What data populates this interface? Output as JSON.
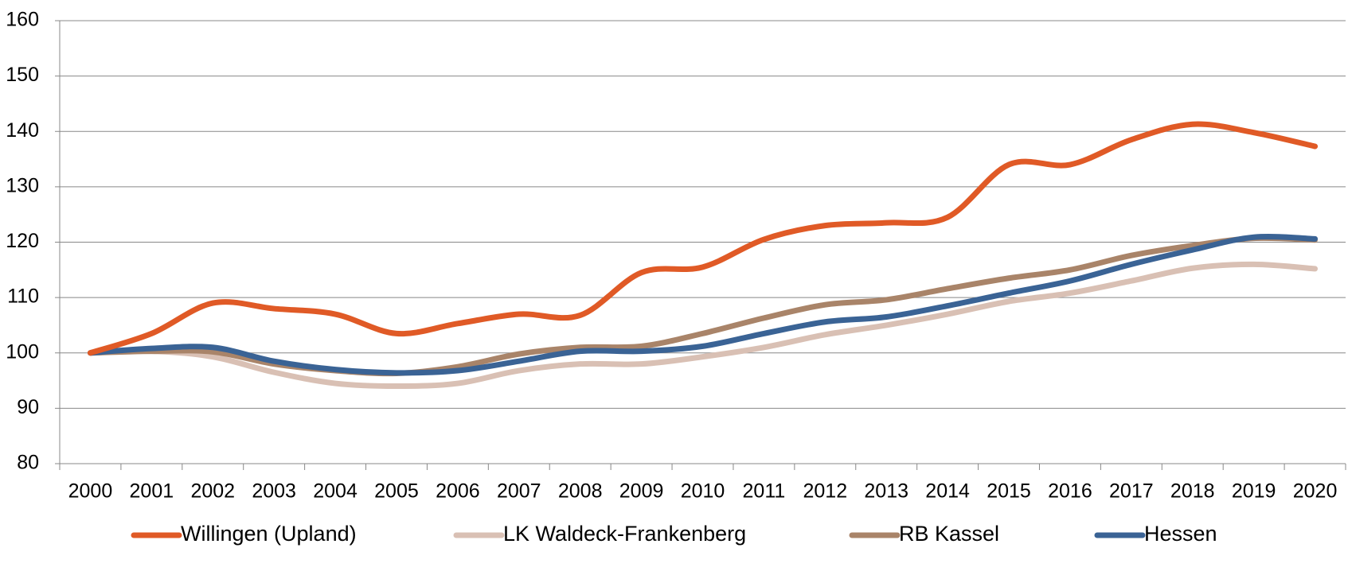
{
  "chart_data": {
    "type": "line",
    "categories": [
      "2000",
      "2001",
      "2002",
      "2003",
      "2004",
      "2005",
      "2006",
      "2007",
      "2008",
      "2009",
      "2010",
      "2011",
      "2012",
      "2013",
      "2014",
      "2015",
      "2016",
      "2017",
      "2018",
      "2019",
      "2020"
    ],
    "series": [
      {
        "name": "Willingen (Upland)",
        "color": "#e05a26",
        "values": [
          100,
          103.5,
          109,
          108,
          107,
          103.5,
          105.3,
          107,
          106.8,
          114.5,
          115.5,
          120.5,
          123,
          123.5,
          124.5,
          134,
          134,
          138.5,
          141.3,
          139.8,
          137.3
        ]
      },
      {
        "name": "LK Waldeck-Frankenberg",
        "color": "#d9c0b4",
        "values": [
          100,
          100.3,
          99.3,
          96.5,
          94.5,
          94,
          94.5,
          96.8,
          98,
          98,
          99.3,
          101,
          103.3,
          105,
          107,
          109.3,
          110.8,
          113,
          115.3,
          116,
          115.2
        ]
      },
      {
        "name": "RB Kassel",
        "color": "#a98469",
        "values": [
          100,
          100.3,
          100.2,
          98,
          96.8,
          96.3,
          97.5,
          99.8,
          101,
          101.2,
          103.5,
          106.3,
          108.7,
          109.6,
          111.6,
          113.5,
          115,
          117.6,
          119.4,
          120.7,
          120.4
        ]
      },
      {
        "name": "Hessen",
        "color": "#3a6395",
        "values": [
          100,
          100.8,
          101,
          98.5,
          97,
          96.4,
          96.8,
          98.5,
          100.3,
          100.3,
          101.2,
          103.5,
          105.6,
          106.5,
          108.5,
          110.8,
          113,
          116,
          118.6,
          120.9,
          120.6
        ]
      }
    ],
    "ylim": [
      80,
      160
    ],
    "yticks": [
      80,
      90,
      100,
      110,
      120,
      130,
      140,
      150,
      160
    ],
    "grid": true,
    "legend": "bottom"
  }
}
